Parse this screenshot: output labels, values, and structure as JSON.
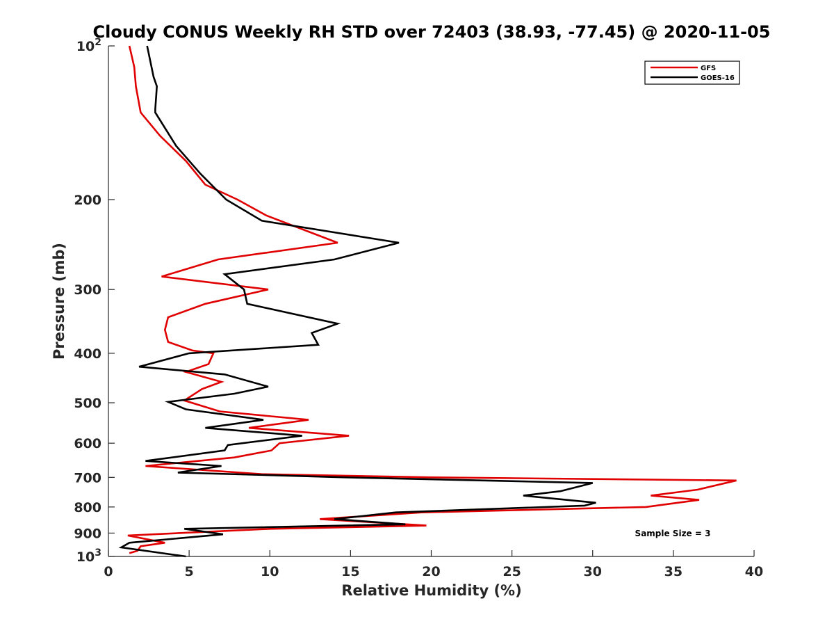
{
  "chart_data": {
    "type": "line",
    "title": "Cloudy CONUS Weekly RH STD over 72403 (38.93, -77.45) @ 2020-11-05",
    "xlabel": "Relative Humidity (%)",
    "ylabel": "Pressure (mb)",
    "xlim": [
      0,
      40
    ],
    "ylim": [
      100,
      1000
    ],
    "y_scale": "log",
    "y_reversed": true,
    "grid": false,
    "legend_position": "top-right",
    "x_ticks": [
      "0",
      "5",
      "10",
      "15",
      "20",
      "25",
      "30",
      "35",
      "40"
    ],
    "y_ticks": [
      {
        "value": 100,
        "label": "10",
        "sup": "2"
      },
      {
        "value": 200,
        "label": "200"
      },
      {
        "value": 300,
        "label": "300"
      },
      {
        "value": 400,
        "label": "400"
      },
      {
        "value": 500,
        "label": "500"
      },
      {
        "value": 600,
        "label": "600"
      },
      {
        "value": 700,
        "label": "700"
      },
      {
        "value": 800,
        "label": "800"
      },
      {
        "value": 900,
        "label": "900"
      },
      {
        "value": 1000,
        "label": "10",
        "sup": "3"
      }
    ],
    "annotation": "Sample Size = 3",
    "series": [
      {
        "name": "GFS",
        "color": "#e00000",
        "points": [
          [
            1.3,
            100
          ],
          [
            1.6,
            110
          ],
          [
            1.7,
            120
          ],
          [
            2.0,
            135
          ],
          [
            3.2,
            150
          ],
          [
            4.8,
            168
          ],
          [
            6.0,
            187
          ],
          [
            8.0,
            200
          ],
          [
            9.8,
            215
          ],
          [
            14.2,
            243
          ],
          [
            6.8,
            262
          ],
          [
            3.3,
            283
          ],
          [
            9.9,
            300
          ],
          [
            6.0,
            320
          ],
          [
            3.7,
            340
          ],
          [
            3.5,
            360
          ],
          [
            3.7,
            380
          ],
          [
            5.2,
            395
          ],
          [
            6.5,
            400
          ],
          [
            6.2,
            420
          ],
          [
            4.8,
            435
          ],
          [
            7.0,
            455
          ],
          [
            5.8,
            470
          ],
          [
            4.7,
            495
          ],
          [
            6.9,
            520
          ],
          [
            12.4,
            540
          ],
          [
            8.7,
            560
          ],
          [
            14.9,
            580
          ],
          [
            10.6,
            600
          ],
          [
            10.1,
            620
          ],
          [
            7.8,
            640
          ],
          [
            2.3,
            665
          ],
          [
            9.5,
            690
          ],
          [
            20.0,
            700
          ],
          [
            38.9,
            710
          ],
          [
            36.5,
            740
          ],
          [
            33.6,
            760
          ],
          [
            36.6,
            775
          ],
          [
            33.3,
            800
          ],
          [
            19.4,
            820
          ],
          [
            13.1,
            845
          ],
          [
            19.7,
            870
          ],
          [
            10.0,
            883
          ],
          [
            1.2,
            910
          ],
          [
            3.5,
            940
          ],
          [
            2.0,
            955
          ],
          [
            1.8,
            975
          ],
          [
            1.3,
            985
          ]
        ]
      },
      {
        "name": "GOES-16",
        "color": "#000000",
        "points": [
          [
            2.4,
            100
          ],
          [
            2.8,
            115
          ],
          [
            3.0,
            120
          ],
          [
            2.9,
            133
          ],
          [
            2.9,
            135
          ],
          [
            4.2,
            157
          ],
          [
            5.7,
            178
          ],
          [
            7.3,
            200
          ],
          [
            9.5,
            220
          ],
          [
            18.0,
            243
          ],
          [
            14.0,
            262
          ],
          [
            7.2,
            280
          ],
          [
            8.4,
            300
          ],
          [
            8.6,
            320
          ],
          [
            14.2,
            350
          ],
          [
            12.6,
            365
          ],
          [
            13.0,
            385
          ],
          [
            5.0,
            400
          ],
          [
            1.9,
            425
          ],
          [
            7.2,
            440
          ],
          [
            9.9,
            465
          ],
          [
            7.8,
            480
          ],
          [
            3.7,
            498
          ],
          [
            4.8,
            515
          ],
          [
            9.6,
            540
          ],
          [
            6.0,
            560
          ],
          [
            12.0,
            580
          ],
          [
            7.4,
            605
          ],
          [
            7.2,
            620
          ],
          [
            2.3,
            650
          ],
          [
            7.0,
            665
          ],
          [
            4.3,
            685
          ],
          [
            14.7,
            700
          ],
          [
            30.0,
            718
          ],
          [
            28.0,
            745
          ],
          [
            25.7,
            760
          ],
          [
            30.2,
            785
          ],
          [
            29.5,
            795
          ],
          [
            17.8,
            820
          ],
          [
            14.0,
            845
          ],
          [
            18.4,
            865
          ],
          [
            4.7,
            883
          ],
          [
            7.1,
            905
          ],
          [
            1.3,
            940
          ],
          [
            0.8,
            960
          ],
          [
            4.8,
            1000
          ]
        ]
      }
    ]
  }
}
